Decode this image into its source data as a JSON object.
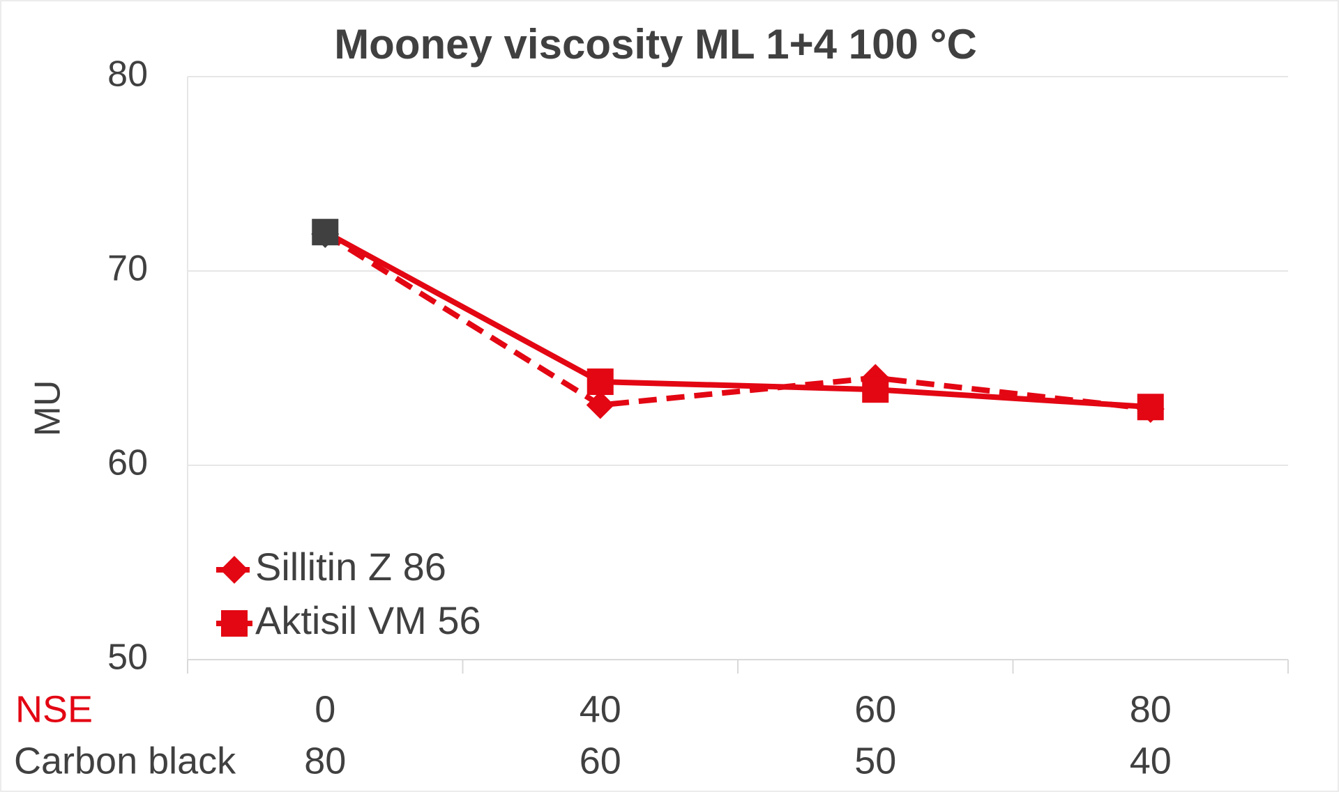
{
  "chart_data": {
    "type": "line",
    "title": "Mooney viscosity ML 1+4 100 °C",
    "y_label": "MU",
    "category_rows": [
      "NSE",
      "Carbon black"
    ],
    "categories": [
      "0",
      "40",
      "60",
      "80"
    ],
    "categories2": [
      "80",
      "60",
      "50",
      "40"
    ],
    "series": [
      {
        "name": "Sillitin Z 86",
        "color": "#e30613",
        "dashed": true,
        "marker": "diamond",
        "values": [
          71.9,
          63.1,
          64.5,
          62.9
        ]
      },
      {
        "name": "Aktisil VM 56",
        "color": "#e30613",
        "dashed": false,
        "marker": "square",
        "values": [
          72.0,
          64.3,
          63.9,
          63.0
        ]
      }
    ],
    "first_marker_color": "#404040",
    "ylim": [
      50,
      80
    ],
    "yticks": [
      50,
      60,
      70,
      80
    ],
    "grid": true,
    "legend": "lower-left"
  }
}
